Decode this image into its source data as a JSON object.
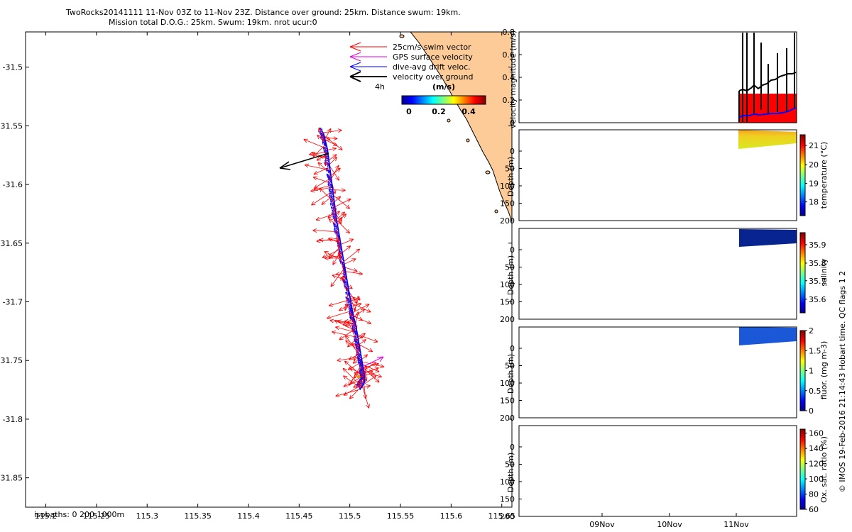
{
  "header": {
    "line1": "TwoRocks20141111 11-Nov 03Z to 11-Nov 23Z. Distance over ground: 25km. Distance swum: 19km.",
    "line2": "Mission total D.O.G.: 25km. Swum: 19km. nrot ucur:0"
  },
  "map": {
    "legend": [
      "25cm/s swim vector",
      "GPS surface velocity",
      "dive-avg drift veloc.",
      "velocity over ground"
    ],
    "legend_time": "4h",
    "colorbar_title": "(m/s)",
    "colorbar_ticks": [
      "0",
      "0.2",
      "0.4"
    ],
    "isobaths_label": "isobaths: 0   200   1000m",
    "colors": {
      "swim": "#ff0000",
      "gps": "#e000e0",
      "drift": "#0000ff",
      "ground": "#000000",
      "land": "#fdcb98"
    }
  },
  "panels": {
    "velocity_ylabel": "velocity magnitude (m/s)",
    "velocity_yticks": [
      "0.8",
      "0.6",
      "0.4",
      "0.2",
      "0"
    ],
    "depth_ylabel": "Depth (m)",
    "depth_yticks": [
      "0",
      "50",
      "100",
      "150",
      "200"
    ],
    "date_ticks": [
      "09Nov",
      "10Nov",
      "11Nov"
    ],
    "temperature": {
      "label": "temperature (°C)",
      "ticks": [
        "21",
        "20",
        "19",
        "18"
      ]
    },
    "salinity": {
      "label": "salinity",
      "ticks": [
        "35.9",
        "35.8",
        "35.7",
        "35.6"
      ]
    },
    "fluor": {
      "label": "fluor. (mg m-3)",
      "ticks": [
        "2",
        "1.5",
        "1",
        "0.5",
        "0"
      ]
    },
    "oxygen": {
      "label": "Ox. sat. ratio (%)",
      "ticks": [
        "160",
        "140",
        "120",
        "100",
        "80",
        "60"
      ]
    }
  },
  "credit": "© IMOS 19-Feb-2016 21:14:43 Hobart time. QC flags 1  2",
  "chart_data": {
    "type": "scatter",
    "title": "TwoRocks20141111 11-Nov 03Z to 11-Nov 23Z. Distance over ground: 25km. Distance swum: 19km.",
    "xlabel": "",
    "ylabel": "",
    "xlim": [
      115.18,
      115.66
    ],
    "ylim": [
      -31.875,
      -31.47
    ],
    "x_ticks": [
      115.2,
      115.25,
      115.3,
      115.35,
      115.4,
      115.45,
      115.5,
      115.55,
      115.6,
      115.65
    ],
    "y_ticks": [
      -31.5,
      -31.55,
      -31.6,
      -31.65,
      -31.7,
      -31.75,
      -31.8,
      -31.85
    ],
    "grid": false,
    "legend_position": "top-right",
    "track": {
      "lon": [
        115.474,
        115.478,
        115.481,
        115.484,
        115.487,
        115.491,
        115.495,
        115.499,
        115.503,
        115.506,
        115.509,
        115.512,
        115.514,
        115.515,
        115.51
      ],
      "lat": [
        -31.556,
        -31.57,
        -31.59,
        -31.61,
        -31.63,
        -31.65,
        -31.67,
        -31.69,
        -31.71,
        -31.72,
        -31.735,
        -31.75,
        -31.76,
        -31.768,
        -31.775
      ]
    }
  }
}
